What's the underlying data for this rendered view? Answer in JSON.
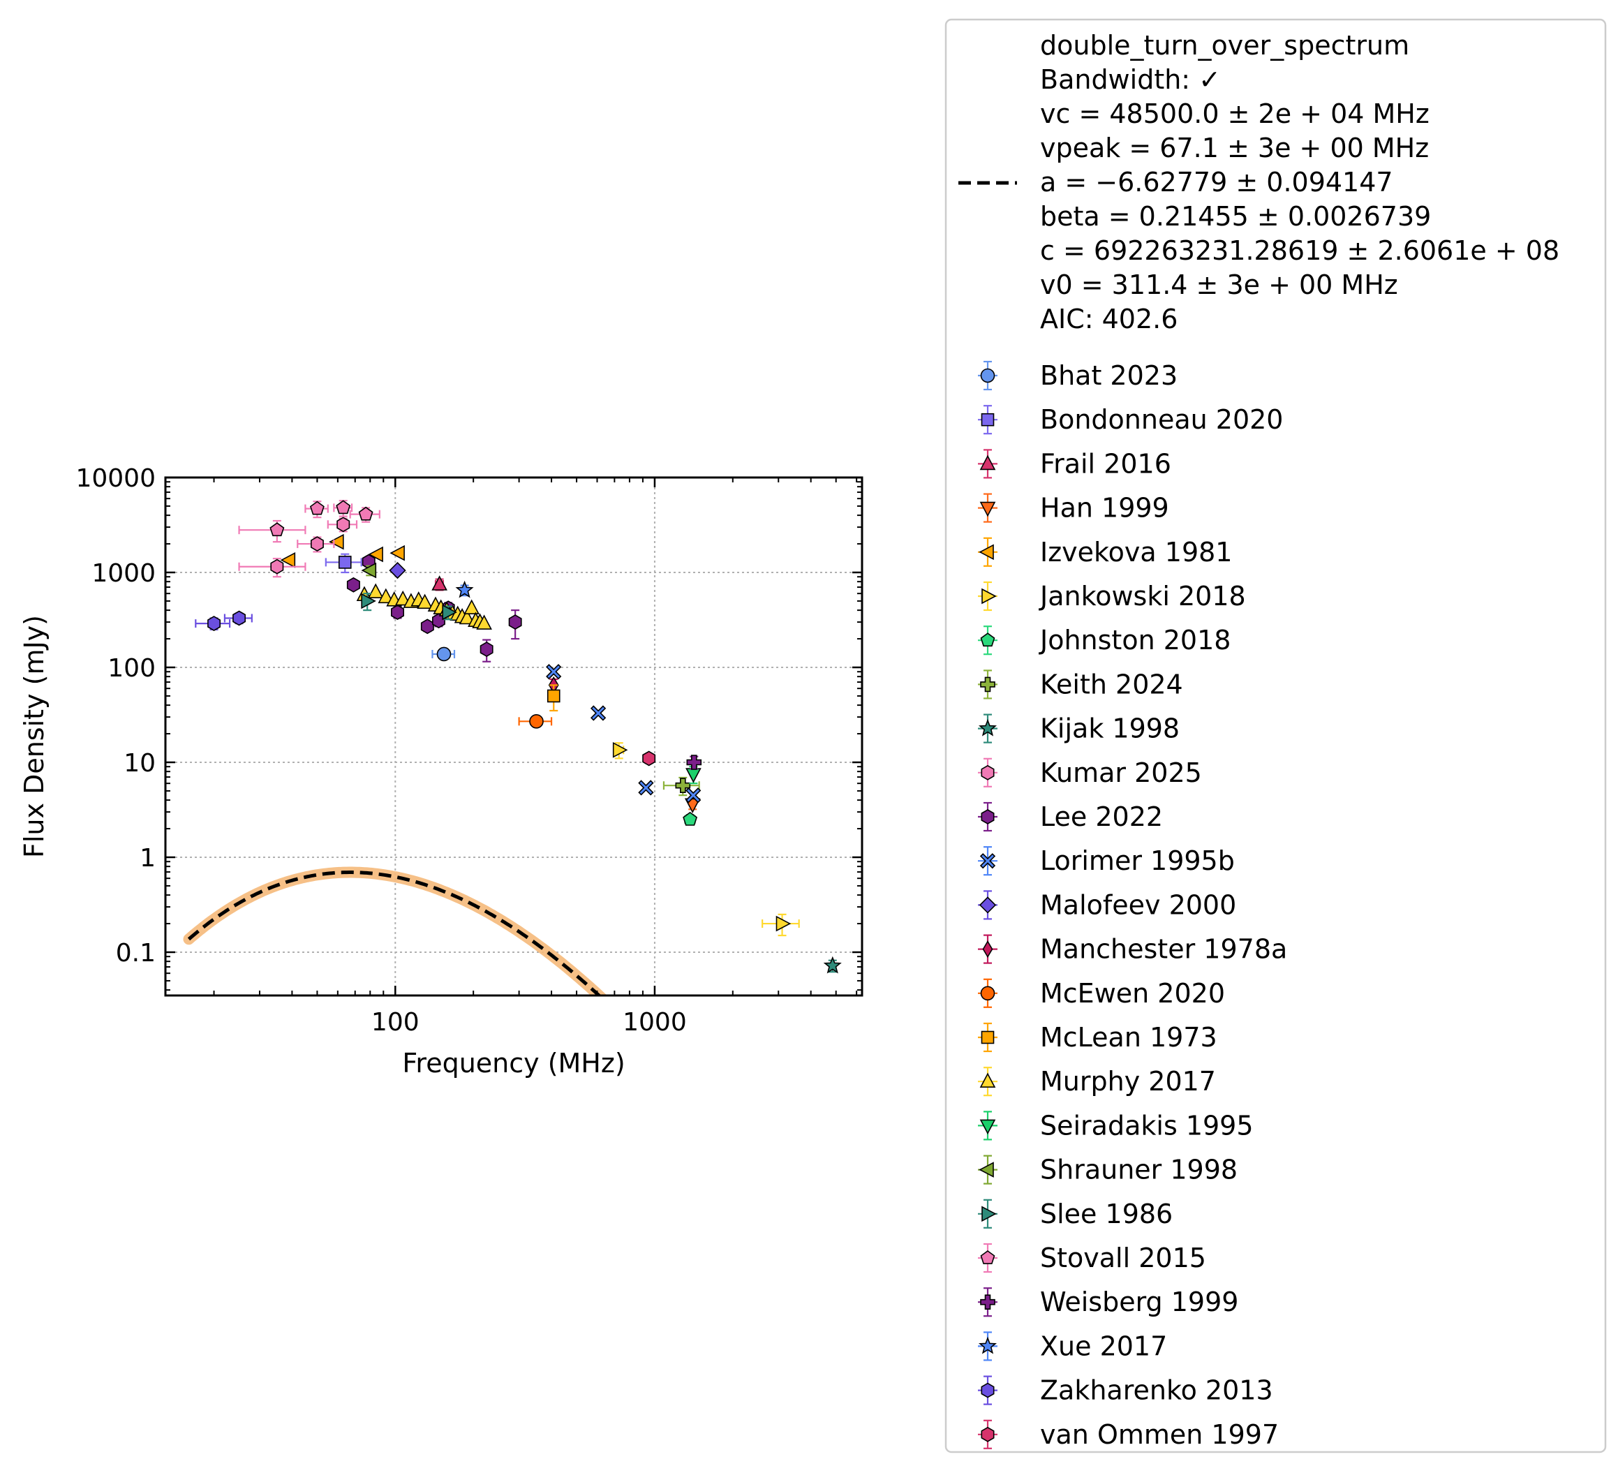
{
  "chart_data": {
    "type": "scatter",
    "title": "",
    "xlabel": "Frequency (MHz)",
    "ylabel": "Flux Density (mJy)",
    "xscale": "log",
    "yscale": "log",
    "xlim": [
      13,
      6300
    ],
    "ylim": [
      0.035,
      10000
    ],
    "xticks": [
      {
        "value": 100,
        "label": "100"
      },
      {
        "value": 1000,
        "label": "1000"
      }
    ],
    "yticks": [
      {
        "value": 0.1,
        "label": "0.1"
      },
      {
        "value": 1,
        "label": "1"
      },
      {
        "value": 10,
        "label": "10"
      },
      {
        "value": 100,
        "label": "100"
      },
      {
        "value": 1000,
        "label": "1000"
      },
      {
        "value": 10000,
        "label": "10000"
      }
    ],
    "grid": true,
    "legend_placement": "outside-right",
    "fit": {
      "model": "double_turn_over_spectrum",
      "label_lines": [
        "double_turn_over_spectrum",
        "Bandwidth: ✓",
        "vc = 48500.0 ± 2e + 04 MHz",
        "vpeak = 67.1 ± 3e + 00 MHz",
        "a = −6.62779 ± 0.094147",
        "beta = 0.21455 ± 0.0026739",
        "c = 692263231.28619 ± 2.6061e + 08",
        "v0 = 311.4 ± 3e + 00 MHz",
        "AIC: 402.6"
      ],
      "vc": 48500.0,
      "vpeak": 67.1,
      "a": -6.62779,
      "beta": 0.21455,
      "c": 692263231.28619,
      "v0": 311.4,
      "x_range": [
        16,
        5200
      ],
      "line_color": "#000000",
      "band_color": "#f5b97a"
    },
    "series": [
      {
        "name": "Bhat 2023",
        "marker": "circle",
        "color": "#6495ed",
        "points": [
          {
            "x": 154,
            "y": 138,
            "xerr": 15,
            "yerr": 12
          }
        ]
      },
      {
        "name": "Bondonneau 2020",
        "marker": "square",
        "color": "#7b68ee",
        "points": [
          {
            "x": 64,
            "y": 1280,
            "xerr": 10,
            "yerr": 280
          }
        ]
      },
      {
        "name": "Frail 2016",
        "marker": "triangle-up",
        "color": "#d6336c",
        "points": [
          {
            "x": 148,
            "y": 750,
            "xerr": 5,
            "yerr": 100
          }
        ]
      },
      {
        "name": "Han 1999",
        "marker": "triangle-down",
        "color": "#ff6a1a",
        "points": [
          {
            "x": 1400,
            "y": 3.6,
            "xerr": 20,
            "yerr": 0.4
          }
        ]
      },
      {
        "name": "Izvekova 1981",
        "marker": "triangle-left",
        "color": "#ffa500",
        "points": [
          {
            "x": 39,
            "y": 1350
          },
          {
            "x": 60,
            "y": 2100
          },
          {
            "x": 85,
            "y": 1550
          },
          {
            "x": 103,
            "y": 1600
          }
        ]
      },
      {
        "name": "Jankowski 2018",
        "marker": "triangle-right",
        "color": "#ffd92f",
        "points": [
          {
            "x": 728,
            "y": 13.5,
            "xerr": 30,
            "yerr": 2.5
          },
          {
            "x": 3100,
            "y": 0.2,
            "xerr": 500,
            "yerr": 0.05
          }
        ]
      },
      {
        "name": "Johnston 2018",
        "marker": "pentagon",
        "color": "#2bd97c",
        "points": [
          {
            "x": 1369,
            "y": 2.5,
            "xerr": 60,
            "yerr": 0.3
          }
        ]
      },
      {
        "name": "Keith 2024",
        "marker": "plus",
        "color": "#8db33b",
        "points": [
          {
            "x": 1284,
            "y": 5.7,
            "xerr": 200,
            "yerr": 1.2
          }
        ]
      },
      {
        "name": "Kijak 1998",
        "marker": "star",
        "color": "#2e8b7a",
        "points": [
          {
            "x": 4850,
            "y": 0.072,
            "yerr": 0.01
          }
        ]
      },
      {
        "name": "Kumar 2025",
        "marker": "hexagon",
        "color": "#f07ab5",
        "points": [
          {
            "x": 35,
            "y": 1150,
            "xerr": 10,
            "yerr": 250
          },
          {
            "x": 50,
            "y": 2000,
            "xerr": 8,
            "yerr": 350
          },
          {
            "x": 63,
            "y": 3200,
            "xerr": 8,
            "yerr": 500
          }
        ]
      },
      {
        "name": "Lee 2022",
        "marker": "hexagon",
        "color": "#7b1f8a",
        "points": [
          {
            "x": 69,
            "y": 740
          },
          {
            "x": 79,
            "y": 1300,
            "yerr": 150
          },
          {
            "x": 102,
            "y": 380,
            "yerr": 50
          },
          {
            "x": 133,
            "y": 270,
            "yerr": 30
          },
          {
            "x": 147,
            "y": 310,
            "yerr": 40
          },
          {
            "x": 160,
            "y": 420,
            "yerr": 60
          },
          {
            "x": 225,
            "y": 155,
            "yerr": 40
          },
          {
            "x": 290,
            "y": 300,
            "yerr": 100
          }
        ]
      },
      {
        "name": "Lorimer 1995b",
        "marker": "x",
        "color": "#4f86f7",
        "points": [
          {
            "x": 408,
            "y": 90
          },
          {
            "x": 606,
            "y": 33
          },
          {
            "x": 925,
            "y": 5.4
          },
          {
            "x": 1408,
            "y": 4.5
          }
        ]
      },
      {
        "name": "Malofeev 2000",
        "marker": "diamond",
        "color": "#6a4fe0",
        "points": [
          {
            "x": 102,
            "y": 1050
          }
        ]
      },
      {
        "name": "Manchester 1978a",
        "marker": "thin-diamond",
        "color": "#c2185b",
        "points": [
          {
            "x": 408,
            "y": 65,
            "yerr": 10
          }
        ]
      },
      {
        "name": "McEwen 2020",
        "marker": "circle",
        "color": "#ff6600",
        "points": [
          {
            "x": 350,
            "y": 27,
            "xerr": 50,
            "yerr": 3
          }
        ]
      },
      {
        "name": "McLean 1973",
        "marker": "square",
        "color": "#ffa500",
        "points": [
          {
            "x": 408,
            "y": 50,
            "yerr": 15
          }
        ]
      },
      {
        "name": "Murphy 2017",
        "marker": "triangle-up",
        "color": "#ffd92f",
        "points": [
          {
            "x": 76,
            "y": 580
          },
          {
            "x": 84,
            "y": 620
          },
          {
            "x": 92,
            "y": 550
          },
          {
            "x": 99,
            "y": 510
          },
          {
            "x": 107,
            "y": 520
          },
          {
            "x": 115,
            "y": 490
          },
          {
            "x": 123,
            "y": 510
          },
          {
            "x": 130,
            "y": 480
          },
          {
            "x": 143,
            "y": 450
          },
          {
            "x": 150,
            "y": 420
          },
          {
            "x": 158,
            "y": 400
          },
          {
            "x": 166,
            "y": 370
          },
          {
            "x": 174,
            "y": 360
          },
          {
            "x": 181,
            "y": 340
          },
          {
            "x": 189,
            "y": 330
          },
          {
            "x": 197,
            "y": 420
          },
          {
            "x": 204,
            "y": 310
          },
          {
            "x": 212,
            "y": 300
          },
          {
            "x": 220,
            "y": 290
          }
        ]
      },
      {
        "name": "Seiradakis 1995",
        "marker": "triangle-down",
        "color": "#1bcf6a",
        "points": [
          {
            "x": 1410,
            "y": 7.5,
            "yerr": 1.5
          }
        ]
      },
      {
        "name": "Shrauner 1998",
        "marker": "triangle-left",
        "color": "#7fa832",
        "points": [
          {
            "x": 80,
            "y": 1050,
            "yerr": 120
          }
        ]
      },
      {
        "name": "Slee 1986",
        "marker": "triangle-right",
        "color": "#2e8b7a",
        "points": [
          {
            "x": 78,
            "y": 500,
            "yerr": 100
          },
          {
            "x": 160,
            "y": 380,
            "yerr": 60
          }
        ]
      },
      {
        "name": "Stovall 2015",
        "marker": "pentagon",
        "color": "#f07ab5",
        "points": [
          {
            "x": 35,
            "y": 2800,
            "xerr": 10,
            "yerr": 700
          },
          {
            "x": 50,
            "y": 4700,
            "xerr": 5,
            "yerr": 900
          },
          {
            "x": 63,
            "y": 4800,
            "xerr": 5,
            "yerr": 900
          },
          {
            "x": 77,
            "y": 4100,
            "xerr": 10,
            "yerr": 700
          }
        ]
      },
      {
        "name": "Weisberg 1999",
        "marker": "plus",
        "color": "#7b1f8a",
        "points": [
          {
            "x": 1418,
            "y": 10,
            "yerr": 1.5
          }
        ]
      },
      {
        "name": "Xue 2017",
        "marker": "star",
        "color": "#4f86f7",
        "points": [
          {
            "x": 185,
            "y": 650,
            "yerr": 80
          }
        ]
      },
      {
        "name": "Zakharenko 2013",
        "marker": "hexagon",
        "color": "#6a4fe0",
        "points": [
          {
            "x": 20,
            "y": 290,
            "xerr": 3,
            "yerr": 40
          },
          {
            "x": 25,
            "y": 330,
            "xerr": 3,
            "yerr": 40
          }
        ]
      },
      {
        "name": "van Ommen 1997",
        "marker": "hexagon",
        "color": "#d6336c",
        "points": [
          {
            "x": 950,
            "y": 11,
            "yerr": 1.2
          }
        ]
      }
    ]
  }
}
